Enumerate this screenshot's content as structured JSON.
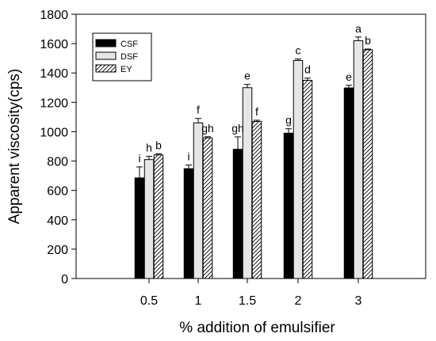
{
  "chart_data": {
    "type": "bar",
    "xlabel": "% addition of emulsifier",
    "ylabel": "Apparent viscosity(cps)",
    "categories": [
      "0.5",
      "1",
      "1.5",
      "2",
      "3"
    ],
    "ylim": [
      0,
      1800
    ],
    "yticks": [
      0,
      200,
      400,
      600,
      800,
      1000,
      1200,
      1400,
      1600,
      1800
    ],
    "legend_position": "top-left",
    "grid": false,
    "series": [
      {
        "name": "CSF",
        "fill": "solid",
        "color": "#000000",
        "values": [
          685,
          748,
          880,
          990,
          1298
        ],
        "errors": [
          75,
          25,
          85,
          30,
          18
        ],
        "labels": [
          "i",
          "i",
          "gh",
          "g",
          "e"
        ]
      },
      {
        "name": "DSF",
        "fill": "light",
        "color": "#e6e6e6",
        "values": [
          810,
          1060,
          1300,
          1485,
          1620
        ],
        "errors": [
          22,
          30,
          22,
          10,
          25
        ],
        "labels": [
          "h",
          "f",
          "e",
          "c",
          "a"
        ]
      },
      {
        "name": "EY",
        "fill": "hatch",
        "color": "#ffffff",
        "values": [
          842,
          958,
          1070,
          1350,
          1558
        ],
        "errors": [
          8,
          8,
          8,
          15,
          5
        ],
        "labels": [
          "b",
          "gh",
          "f",
          "d",
          "b"
        ]
      }
    ]
  }
}
